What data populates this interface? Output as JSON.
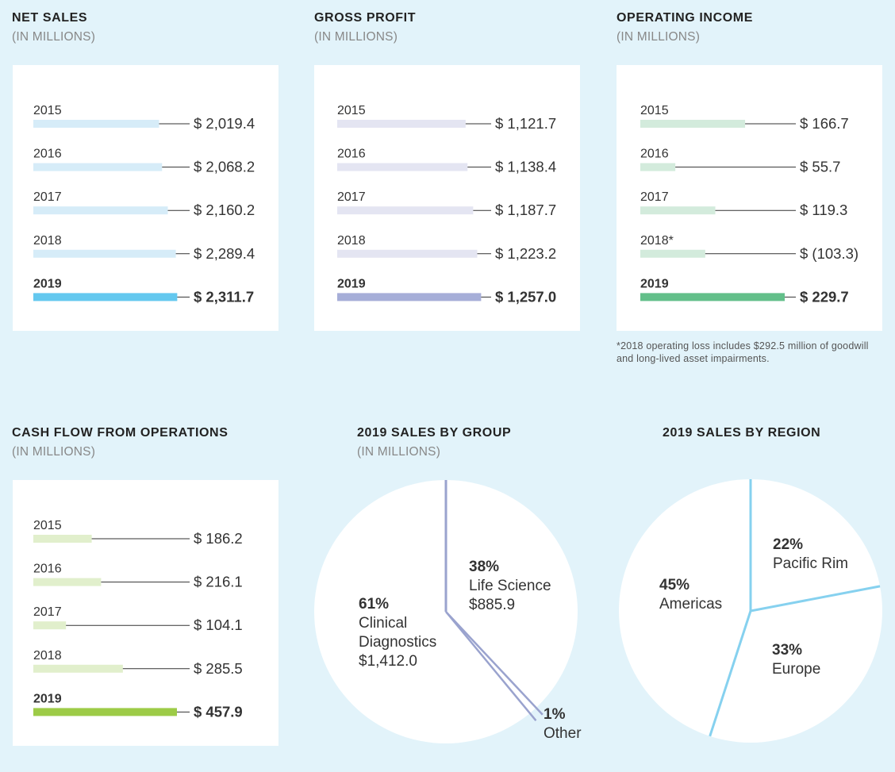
{
  "colors": {
    "background": "#e2f3fa",
    "net_sales": {
      "light": "#d6ecf8",
      "dark": "#64c8ef"
    },
    "gross_profit": {
      "light": "#e4e5f2",
      "dark": "#a6aed8"
    },
    "operating_income": {
      "light": "#d3ebdc",
      "dark": "#63bf8a"
    },
    "cash_flow": {
      "light": "#e1efcc",
      "dark": "#9dcb47"
    },
    "sales_by_group_line": "#9aa3ce",
    "sales_by_region_line": "#86d1ef"
  },
  "footnote": "*2018 operating loss includes $292.5 million of goodwill and long-lived asset impairments.",
  "chart_data": [
    {
      "id": "net_sales",
      "type": "bar",
      "title": "NET SALES",
      "subtitle": "(IN MILLIONS)",
      "categories": [
        "2015",
        "2016",
        "2017",
        "2018",
        "2019"
      ],
      "values": [
        2019.4,
        2068.2,
        2160.2,
        2289.4,
        2311.7
      ],
      "value_labels": [
        "$ 2,019.4",
        "$ 2,068.2",
        "$ 2,160.2",
        "$ 2,289.4",
        "$ 2,311.7"
      ],
      "highlight": "2019"
    },
    {
      "id": "gross_profit",
      "type": "bar",
      "title": "GROSS PROFIT",
      "subtitle": "(IN MILLIONS)",
      "categories": [
        "2015",
        "2016",
        "2017",
        "2018",
        "2019"
      ],
      "values": [
        1121.7,
        1138.4,
        1187.7,
        1223.2,
        1257.0
      ],
      "value_labels": [
        "$ 1,121.7",
        "$ 1,138.4",
        "$ 1,187.7",
        "$ 1,223.2",
        "$ 1,257.0"
      ],
      "highlight": "2019"
    },
    {
      "id": "operating_income",
      "type": "bar",
      "title": "OPERATING INCOME",
      "subtitle": "(IN MILLIONS)",
      "categories": [
        "2015",
        "2016",
        "2017",
        "2018*",
        "2019"
      ],
      "values": [
        166.7,
        55.7,
        119.3,
        -103.3,
        229.7
      ],
      "value_labels": [
        "$ 166.7",
        "$ 55.7",
        "$ 119.3",
        "$ (103.3)",
        "$ 229.7"
      ],
      "highlight": "2019"
    },
    {
      "id": "cash_flow",
      "type": "bar",
      "title": "CASH FLOW FROM OPERATIONS",
      "subtitle": "(IN MILLIONS)",
      "categories": [
        "2015",
        "2016",
        "2017",
        "2018",
        "2019"
      ],
      "values": [
        186.2,
        216.1,
        104.1,
        285.5,
        457.9
      ],
      "value_labels": [
        "$ 186.2",
        "$ 216.1",
        "$ 104.1",
        "$ 285.5",
        "$ 457.9"
      ],
      "highlight": "2019"
    },
    {
      "id": "sales_by_group",
      "type": "pie",
      "title": "2019 SALES BY GROUP",
      "subtitle": "(IN MILLIONS)",
      "slices": [
        {
          "label": "Life Science",
          "percent": 38,
          "percent_label": "38%",
          "value": 885.9,
          "value_label": "$885.9"
        },
        {
          "label": "Other",
          "percent": 1,
          "percent_label": "1%"
        },
        {
          "label": "Clinical Diagnostics",
          "label_lines": [
            "Clinical",
            "Diagnostics"
          ],
          "percent": 61,
          "percent_label": "61%",
          "value": 1412.0,
          "value_label": "$1,412.0"
        }
      ]
    },
    {
      "id": "sales_by_region",
      "type": "pie",
      "title": "2019 SALES BY REGION",
      "subtitle": "",
      "slices": [
        {
          "label": "Pacific Rim",
          "percent": 22,
          "percent_label": "22%"
        },
        {
          "label": "Europe",
          "percent": 33,
          "percent_label": "33%"
        },
        {
          "label": "Americas",
          "percent": 45,
          "percent_label": "45%"
        }
      ]
    }
  ]
}
